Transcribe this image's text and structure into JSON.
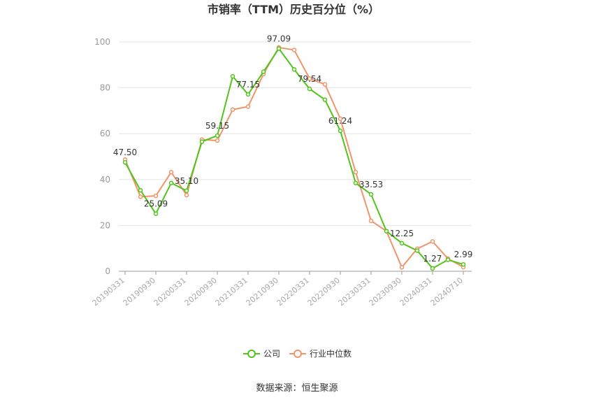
{
  "chart_data": {
    "type": "line",
    "title": "市销率（TTM）历史百分位（%）",
    "ylim": [
      0,
      100
    ],
    "yticks": [
      0,
      20,
      40,
      60,
      80,
      100
    ],
    "x": [
      "20190331",
      "20190630",
      "20190930",
      "20191231",
      "20200331",
      "20200630",
      "20200930",
      "20201231",
      "20210331",
      "20210630",
      "20210930",
      "20211231",
      "20220331",
      "20220630",
      "20220930",
      "20221231",
      "20230331",
      "20230630",
      "20230930",
      "20231231",
      "20240331",
      "20240630",
      "20240710"
    ],
    "xtick_labels": [
      "20190331",
      "20190930",
      "20200331",
      "20200930",
      "20210331",
      "20210930",
      "20220331",
      "20220930",
      "20230331",
      "20230930",
      "20240331",
      "20240710"
    ],
    "series": [
      {
        "name": "公司",
        "color": "#52c41a",
        "values": [
          47.5,
          35.3,
          25.09,
          38.5,
          35.1,
          56.5,
          59.15,
          85.0,
          77.15,
          87.0,
          97.09,
          88.0,
          79.54,
          74.8,
          61.24,
          38.5,
          33.53,
          17.5,
          12.25,
          9.0,
          1.27,
          5.0,
          2.99
        ]
      },
      {
        "name": "行业中位数",
        "color": "#f0956a",
        "values": [
          48.7,
          32.5,
          32.9,
          43.2,
          33.2,
          57.4,
          57.0,
          70.5,
          71.8,
          86.0,
          97.6,
          96.5,
          84.0,
          81.5,
          66.5,
          43.2,
          22.0,
          17.5,
          1.7,
          9.8,
          13.0,
          5.5,
          1.8
        ]
      }
    ],
    "data_labels": [
      {
        "index": 0,
        "text": "47.50"
      },
      {
        "index": 2,
        "text": "25.09"
      },
      {
        "index": 4,
        "text": "35.10"
      },
      {
        "index": 6,
        "text": "59.15"
      },
      {
        "index": 8,
        "text": "77.15"
      },
      {
        "index": 10,
        "text": "97.09"
      },
      {
        "index": 12,
        "text": "79.54"
      },
      {
        "index": 14,
        "text": "61.24"
      },
      {
        "index": 16,
        "text": "33.53"
      },
      {
        "index": 18,
        "text": "12.25"
      },
      {
        "index": 20,
        "text": "1.27"
      },
      {
        "index": 22,
        "text": "2.99"
      }
    ],
    "legend_position": "bottom-center",
    "grid": true
  },
  "footer": {
    "source": "数据来源：恒生聚源"
  }
}
